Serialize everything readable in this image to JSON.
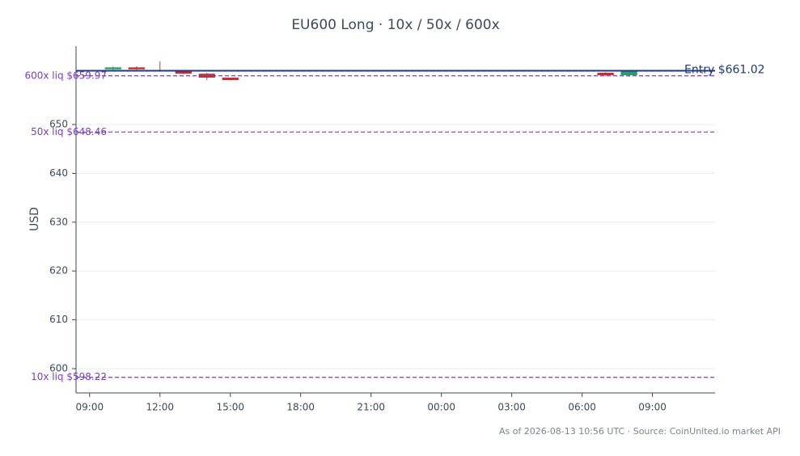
{
  "chart_data": {
    "type": "candlestick",
    "title": "EU600 Long · 10x / 50x / 600x",
    "ylabel": "USD",
    "footer": "As of 2026-08-13 10:56 UTC · Source: CoinUnited.io market API",
    "x": [
      10,
      11,
      12,
      13,
      14,
      15,
      31,
      32
    ],
    "open": [
      661.3,
      661.7,
      661.1,
      661.0,
      660.4,
      659.6,
      660.6,
      660.1
    ],
    "high": [
      661.9,
      661.9,
      662.9,
      661.1,
      660.6,
      659.6,
      660.7,
      661.1
    ],
    "low": [
      661.2,
      661.2,
      660.9,
      660.3,
      659.1,
      659.0,
      659.9,
      659.8
    ],
    "close": [
      661.7,
      661.3,
      661.0,
      660.4,
      659.6,
      659.1,
      660.1,
      661.0
    ],
    "up_color": "#2a9d6f",
    "down_color": "#c62f2f",
    "xlim": [
      8.42,
      35.67
    ],
    "xticks": [
      {
        "value": 9,
        "label": "09:00"
      },
      {
        "value": 12,
        "label": "12:00"
      },
      {
        "value": 15,
        "label": "15:00"
      },
      {
        "value": 18,
        "label": "18:00"
      },
      {
        "value": 21,
        "label": "21:00"
      },
      {
        "value": 24,
        "label": "00:00"
      },
      {
        "value": 27,
        "label": "03:00"
      },
      {
        "value": 30,
        "label": "06:00"
      },
      {
        "value": 33,
        "label": "09:00"
      }
    ],
    "ylim": [
      595.03,
      666.06
    ],
    "yticks": [
      600,
      610,
      620,
      630,
      640,
      650
    ],
    "grid": true,
    "reference_lines": [
      {
        "label": "Entry $661.02",
        "value": 661.02,
        "color": "#1f3a7a",
        "style": "solid"
      },
      {
        "label": "600x liq $659.97",
        "value": 659.97,
        "color": "#7b3fc4",
        "style": "dashed"
      },
      {
        "label": "50x liq $648.46",
        "value": 648.46,
        "color": "#7b3fc4",
        "style": "dashed"
      },
      {
        "label": "10x liq $598.22",
        "value": 598.22,
        "color": "#7b3fc4",
        "style": "dashed"
      }
    ]
  }
}
